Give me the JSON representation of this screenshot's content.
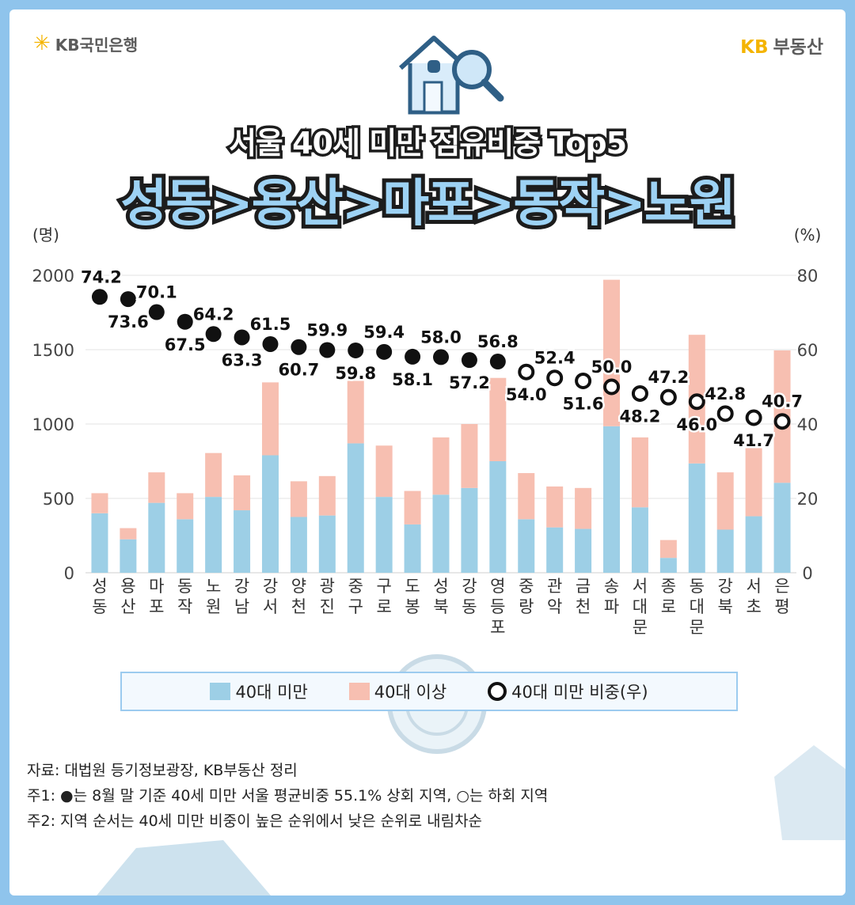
{
  "brand": {
    "bank": "KB국민은행",
    "realty_kb": "KB",
    "realty_name": "부동산"
  },
  "title": {
    "line1": "서울 40세 미만 점유비중 Top5",
    "line2": "성동>용산>마포>동작>노원"
  },
  "chart_data": {
    "type": "bar",
    "stacked": true,
    "categories": [
      "성동",
      "용산",
      "마포",
      "동작",
      "노원",
      "강남",
      "강서",
      "양천",
      "광진",
      "중구",
      "구로",
      "도봉",
      "성북",
      "강동",
      "영등포",
      "중랑",
      "관악",
      "금천",
      "송파",
      "서대문",
      "종로",
      "동대문",
      "강북",
      "서초",
      "은평"
    ],
    "series": [
      {
        "name": "40대 미만",
        "values": [
          400,
          225,
          470,
          360,
          510,
          420,
          790,
          375,
          385,
          870,
          510,
          325,
          525,
          570,
          750,
          360,
          305,
          295,
          985,
          440,
          100,
          735,
          290,
          380,
          605
        ],
        "color": "#9dcfe6"
      },
      {
        "name": "40대 이상",
        "values": [
          135,
          75,
          205,
          175,
          295,
          235,
          490,
          240,
          265,
          420,
          345,
          225,
          385,
          430,
          560,
          310,
          275,
          275,
          985,
          470,
          120,
          865,
          385,
          485,
          890
        ],
        "color": "#f7bfb1"
      },
      {
        "name": "40대 미만 비중(우)",
        "type": "line-markers",
        "axis": "right",
        "values": [
          74.2,
          73.6,
          70.1,
          67.5,
          64.2,
          63.3,
          61.5,
          60.7,
          59.9,
          59.8,
          59.4,
          58.1,
          58.0,
          57.2,
          56.8,
          54.0,
          52.4,
          51.6,
          50.0,
          48.2,
          47.2,
          46.0,
          42.8,
          41.7,
          40.7
        ]
      },
      {
        "name": "above-average",
        "values": [
          true,
          true,
          true,
          true,
          true,
          true,
          true,
          true,
          true,
          true,
          true,
          true,
          true,
          true,
          true,
          false,
          false,
          false,
          false,
          false,
          false,
          false,
          false,
          false,
          false
        ]
      }
    ],
    "y_left": {
      "unit": "(명)",
      "ylim": [
        0,
        2000
      ],
      "ticks": [
        "0",
        "500",
        "1000",
        "1500",
        "2000"
      ]
    },
    "y_right": {
      "unit": "(%)",
      "ylim": [
        0,
        80
      ],
      "ticks": [
        "0",
        "20",
        "40",
        "60",
        "80"
      ]
    },
    "label_pos": [
      "above",
      "below",
      "above",
      "below",
      "above",
      "below",
      "above",
      "below",
      "above",
      "below",
      "above",
      "below",
      "above",
      "below",
      "above",
      "below",
      "above",
      "below",
      "above",
      "below",
      "above",
      "below",
      "above",
      "below",
      "above"
    ],
    "legend_position": "bottom"
  },
  "legend": {
    "under40": "40대 미만",
    "over40": "40대 이상",
    "share": "40대 미만 비중(우)"
  },
  "notes": {
    "source": "자료: 대법원 등기정보광장, KB부동산 정리",
    "note1": "주1: ●는 8월 말 기준 40세 미만 서울 평균비중 55.1% 상회 지역, ○는 하회 지역",
    "note2": "주2: 지역 순서는 40세 미만 비중이 높은 순위에서 낮은 순위로 내림차순"
  },
  "colors": {
    "frame": "#8fc4ec",
    "bar_under40": "#9dcfe6",
    "bar_over40": "#f7bfb1",
    "marker": "#111111"
  },
  "icons": [
    "kb-star-logo",
    "house-icon",
    "magnifier-icon",
    "coin-stack-icon"
  ]
}
